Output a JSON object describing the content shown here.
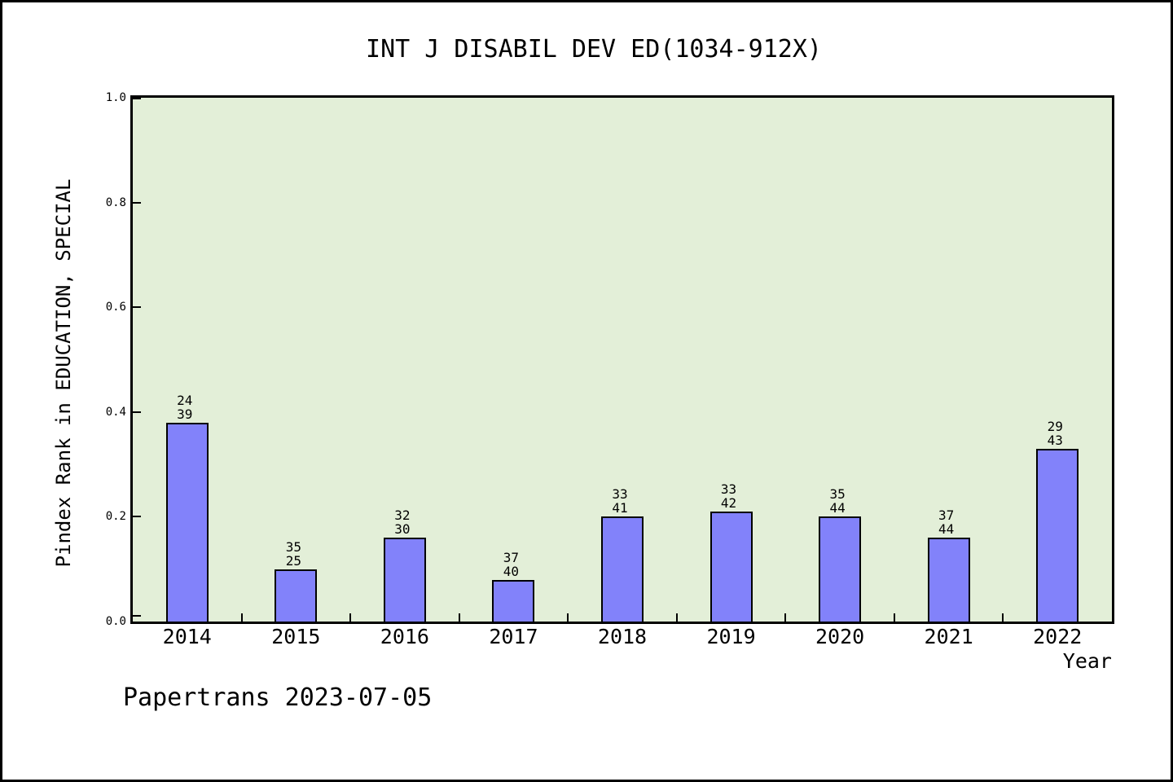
{
  "footer": {
    "text": "Papertrans 2023-07-05"
  },
  "chart_data": {
    "type": "bar",
    "title": "INT J DISABIL DEV ED(1034-912X)",
    "xlabel": "Year",
    "ylabel": "Pindex Rank in EDUCATION, SPECIAL",
    "categories": [
      "2014",
      "2015",
      "2016",
      "2017",
      "2018",
      "2019",
      "2020",
      "2021",
      "2022"
    ],
    "values": [
      0.38,
      0.1,
      0.16,
      0.08,
      0.2,
      0.21,
      0.2,
      0.16,
      0.33
    ],
    "bar_labels": [
      [
        "24",
        "39"
      ],
      [
        "35",
        "25"
      ],
      [
        "32",
        "30"
      ],
      [
        "37",
        "40"
      ],
      [
        "33",
        "41"
      ],
      [
        "33",
        "42"
      ],
      [
        "35",
        "44"
      ],
      [
        "37",
        "44"
      ],
      [
        "29",
        "43"
      ]
    ],
    "ylim": [
      0,
      1
    ],
    "yticks": [
      "0.0",
      "0.2",
      "0.4",
      "0.6",
      "0.8",
      "1.0"
    ],
    "grid": "off",
    "legend": "none",
    "bar_color": "#8282fa",
    "bar_edge_color": "#000000",
    "plot_bg_color": "#e3efd8",
    "outer_bg_color": "#ffffff"
  }
}
